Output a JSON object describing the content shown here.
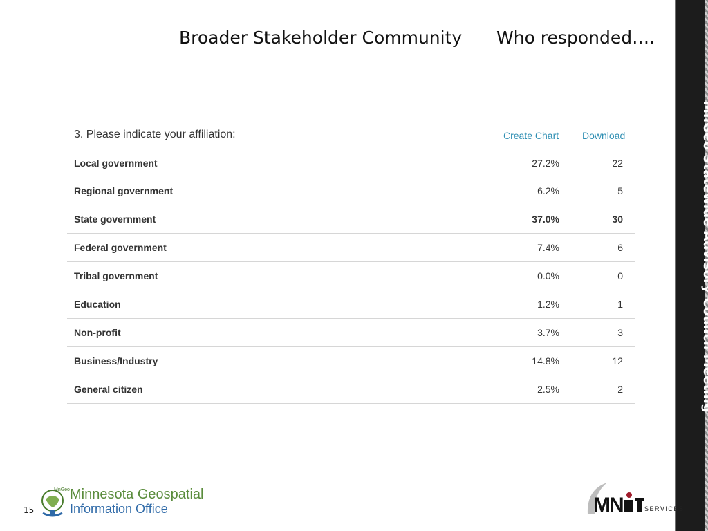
{
  "slide": {
    "heading_left": "Broader Stakeholder Community",
    "heading_right": "Who responded….",
    "side_title": "MnGeo Statewide Advisory Council Meeting",
    "page_number": "15"
  },
  "survey": {
    "question": "3. Please indicate your affiliation:",
    "create_chart_label": "Create Chart",
    "download_label": "Download",
    "rows": [
      {
        "label": "Local government",
        "percent": "27.2%",
        "count": "22"
      },
      {
        "label": "Regional government",
        "percent": "6.2%",
        "count": "5"
      },
      {
        "label": "State government",
        "percent": "37.0%",
        "count": "30"
      },
      {
        "label": "Federal government",
        "percent": "7.4%",
        "count": "6"
      },
      {
        "label": "Tribal government",
        "percent": "0.0%",
        "count": "0"
      },
      {
        "label": "Education",
        "percent": "1.2%",
        "count": "1"
      },
      {
        "label": "Non-profit",
        "percent": "3.7%",
        "count": "3"
      },
      {
        "label": "Business/Industry",
        "percent": "14.8%",
        "count": "12"
      },
      {
        "label": "General citizen",
        "percent": "2.5%",
        "count": "2"
      }
    ]
  },
  "logos": {
    "mngeo_line1": "Minnesota Geospatial",
    "mngeo_line2": "Information Office",
    "mngeo_badge": "MnGeo",
    "mnit_mark": "MN.IT",
    "mnit_services": "SERVICES"
  },
  "colors": {
    "link": "#2f8fb3",
    "mngeo_green": "#5a8c3c",
    "mngeo_blue": "#2f6aa8",
    "mnit_red": "#a01c2c",
    "side_band": "#1c1c1c"
  }
}
